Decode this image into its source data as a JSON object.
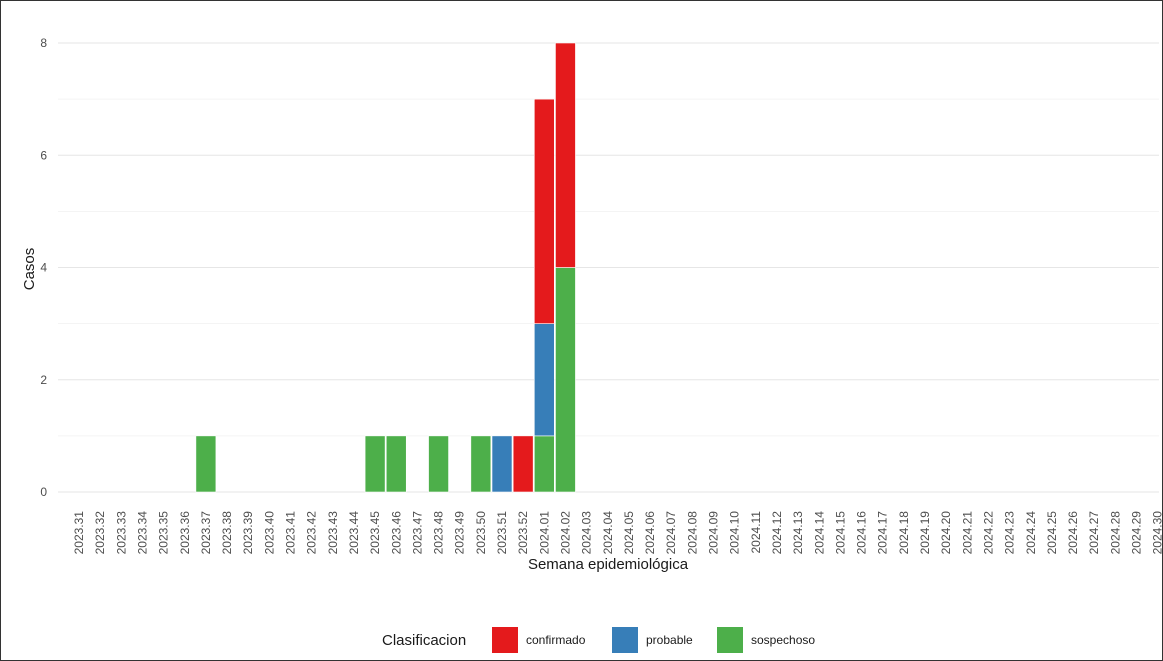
{
  "chart_data": {
    "type": "bar",
    "stacked": true,
    "xlabel": "Semana epidemiológica",
    "ylabel": "Casos",
    "ylim": [
      0,
      8.4
    ],
    "yticks": [
      0,
      2,
      4,
      6,
      8
    ],
    "grid": true,
    "legend_position": "bottom",
    "legend_title": "Clasificacion",
    "categories": [
      "2023.31",
      "2023.32",
      "2023.33",
      "2023.34",
      "2023.35",
      "2023.36",
      "2023.37",
      "2023.38",
      "2023.39",
      "2023.40",
      "2023.41",
      "2023.42",
      "2023.43",
      "2023.44",
      "2023.45",
      "2023.46",
      "2023.47",
      "2023.48",
      "2023.49",
      "2023.50",
      "2023.51",
      "2023.52",
      "2024.01",
      "2024.02",
      "2024.03",
      "2024.04",
      "2024.05",
      "2024.06",
      "2024.07",
      "2024.08",
      "2024.09",
      "2024.10",
      "2024.11",
      "2024.12",
      "2024.13",
      "2024.14",
      "2024.15",
      "2024.16",
      "2024.17",
      "2024.18",
      "2024.19",
      "2024.20",
      "2024.21",
      "2024.22",
      "2024.23",
      "2024.24",
      "2024.25",
      "2024.26",
      "2024.27",
      "2024.28",
      "2024.29",
      "2024.30"
    ],
    "series": [
      {
        "name": "sospechoso",
        "color": "#4DAF4A",
        "values": [
          0,
          0,
          0,
          0,
          0,
          0,
          1,
          0,
          0,
          0,
          0,
          0,
          0,
          0,
          1,
          1,
          0,
          1,
          0,
          1,
          0,
          0,
          1,
          4,
          0,
          0,
          0,
          0,
          0,
          0,
          0,
          0,
          0,
          0,
          0,
          0,
          0,
          0,
          0,
          0,
          0,
          0,
          0,
          0,
          0,
          0,
          0,
          0,
          0,
          0,
          0,
          0
        ]
      },
      {
        "name": "probable",
        "color": "#377EB8",
        "values": [
          0,
          0,
          0,
          0,
          0,
          0,
          0,
          0,
          0,
          0,
          0,
          0,
          0,
          0,
          0,
          0,
          0,
          0,
          0,
          0,
          1,
          0,
          2,
          0,
          0,
          0,
          0,
          0,
          0,
          0,
          0,
          0,
          0,
          0,
          0,
          0,
          0,
          0,
          0,
          0,
          0,
          0,
          0,
          0,
          0,
          0,
          0,
          0,
          0,
          0,
          0,
          0
        ]
      },
      {
        "name": "confirmado",
        "color": "#E41A1C",
        "values": [
          0,
          0,
          0,
          0,
          0,
          0,
          0,
          0,
          0,
          0,
          0,
          0,
          0,
          0,
          0,
          0,
          0,
          0,
          0,
          0,
          0,
          1,
          4,
          4,
          0,
          0,
          0,
          0,
          0,
          0,
          0,
          0,
          0,
          0,
          0,
          0,
          0,
          0,
          0,
          0,
          0,
          0,
          0,
          0,
          0,
          0,
          0,
          0,
          0,
          0,
          0,
          0
        ]
      }
    ],
    "legend_order": [
      "confirmado",
      "probable",
      "sospechoso"
    ]
  }
}
